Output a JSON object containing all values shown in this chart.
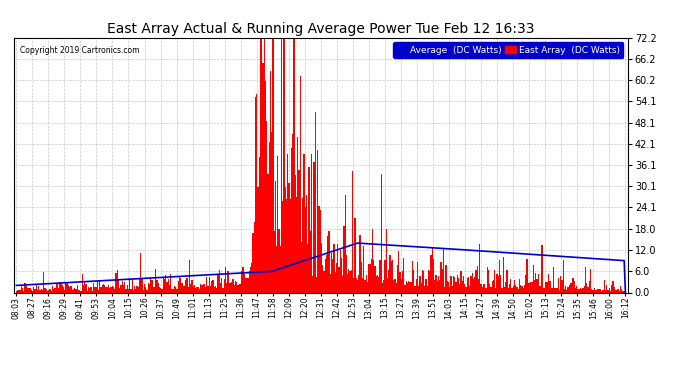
{
  "title": "East Array Actual & Running Average Power Tue Feb 12 16:33",
  "copyright": "Copyright 2019 Cartronics.com",
  "legend_avg": "Average  (DC Watts)",
  "legend_east": "East Array  (DC Watts)",
  "yticks": [
    0.0,
    6.0,
    12.0,
    18.0,
    24.1,
    30.1,
    36.1,
    42.1,
    48.1,
    54.1,
    60.2,
    66.2,
    72.2
  ],
  "ylim": [
    0.0,
    72.2
  ],
  "bg_color": "#ffffff",
  "plot_bg_color": "#ffffff",
  "bar_color": "#ff0000",
  "avg_line_color": "#0000cc",
  "grid_color": "#bbbbbb",
  "title_color": "#000000",
  "x_labels": [
    "08:03",
    "08:27",
    "09:16",
    "09:29",
    "09:41",
    "09:53",
    "10:04",
    "10:15",
    "10:26",
    "10:37",
    "10:49",
    "11:01",
    "11:13",
    "11:25",
    "11:36",
    "11:47",
    "11:58",
    "12:09",
    "12:20",
    "12:31",
    "12:42",
    "12:53",
    "13:04",
    "13:15",
    "13:27",
    "13:39",
    "13:51",
    "14:03",
    "14:15",
    "14:27",
    "14:39",
    "14:50",
    "15:02",
    "15:13",
    "15:24",
    "15:35",
    "15:46",
    "16:00",
    "16:12"
  ]
}
